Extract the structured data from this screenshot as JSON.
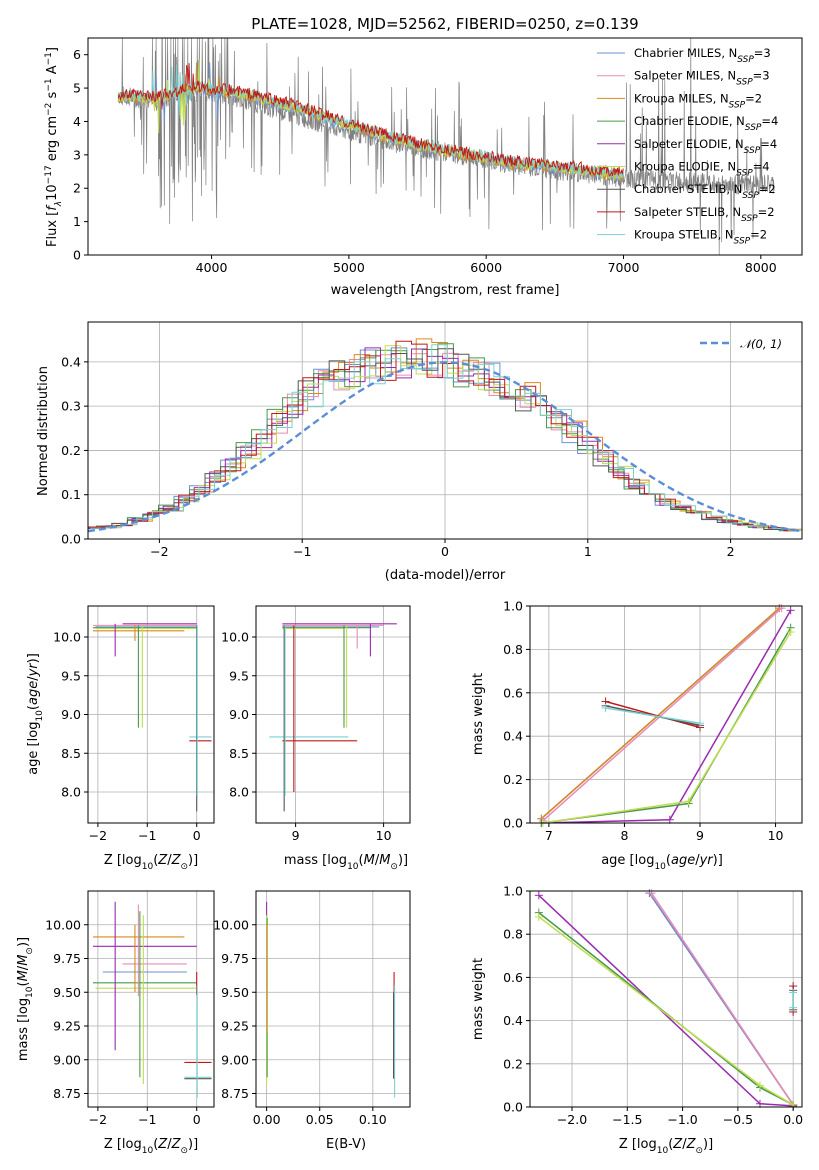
{
  "title": "PLATE=1028, MJD=52562, FIBERID=0250, z=0.139",
  "colors": {
    "Chabrier MILES": "#6d8fd6",
    "Salpeter MILES": "#e88ab8",
    "Kroupa MILES": "#d98a1e",
    "Chabrier ELODIE": "#4a9a4a",
    "Salpeter ELODIE": "#9a2ab0",
    "Kroupa ELODIE": "#c0dc50",
    "Chabrier STELIB": "#555555",
    "Salpeter STELIB": "#c01818",
    "Kroupa STELIB": "#7cd0d0",
    "data": "#808080",
    "normal": "#5b8ed6"
  },
  "chart_data": [
    {
      "type": "line",
      "title": "PLATE=1028, MJD=52562, FIBERID=0250, z=0.139",
      "xlabel": "wavelength [Angstrom, rest frame]",
      "ylabel": "Flux [f_λ 10^-17 erg cm^-2 s^-1 A^-1]",
      "xlim": [
        3100,
        8300
      ],
      "ylim": [
        0,
        6.5
      ],
      "xticks": [
        "4000",
        "5000",
        "6000",
        "7000",
        "8000"
      ],
      "yticks": [
        "0",
        "1",
        "2",
        "3",
        "4",
        "5",
        "6"
      ],
      "legend": [
        {
          "base": "Chabrier MILES",
          "suffix": "=3"
        },
        {
          "base": "Salpeter MILES",
          "suffix": "=3"
        },
        {
          "base": "Kroupa MILES",
          "suffix": "=2"
        },
        {
          "base": "Chabrier ELODIE",
          "suffix": "=4"
        },
        {
          "base": "Salpeter ELODIE",
          "suffix": "=4"
        },
        {
          "base": "Kroupa ELODIE",
          "suffix": "=4"
        },
        {
          "base": "Chabrier STELIB",
          "suffix": "=2"
        },
        {
          "base": "Salpeter STELIB",
          "suffix": "=2"
        },
        {
          "base": "Kroupa STELIB",
          "suffix": "=2"
        }
      ],
      "legend_placement": "top-right",
      "grid": false,
      "data_trend": {
        "x": [
          3320,
          3600,
          3900,
          4200,
          4600,
          5000,
          5400,
          5800,
          6200,
          6600,
          7000,
          7400,
          7800,
          8100
        ],
        "y": [
          4.8,
          4.6,
          4.9,
          4.7,
          4.2,
          3.7,
          3.3,
          3.0,
          2.7,
          2.5,
          2.3,
          2.2,
          2.1,
          2.1
        ]
      },
      "model_trend": {
        "x": [
          3320,
          3600,
          3900,
          4200,
          4600,
          5000,
          5400,
          5800,
          6200,
          6600,
          7000
        ],
        "y": [
          4.75,
          4.7,
          5.0,
          4.85,
          4.45,
          3.9,
          3.4,
          3.05,
          2.75,
          2.6,
          2.4
        ]
      }
    },
    {
      "type": "line",
      "xlabel": "(data-model)/error",
      "ylabel": "Normed distribution",
      "xlim": [
        -2.5,
        2.5
      ],
      "ylim": [
        0,
        0.49
      ],
      "xticks": [
        "−2",
        "−1",
        "0",
        "1",
        "2"
      ],
      "yticks": [
        "0.0",
        "0.1",
        "0.2",
        "0.3",
        "0.4"
      ],
      "grid": true,
      "normal_label": "𝒩(0, 1)",
      "hist_profile": [
        0.025,
        0.028,
        0.032,
        0.045,
        0.058,
        0.07,
        0.09,
        0.11,
        0.14,
        0.17,
        0.2,
        0.23,
        0.265,
        0.3,
        0.33,
        0.355,
        0.37,
        0.38,
        0.39,
        0.4,
        0.405,
        0.41,
        0.405,
        0.4,
        0.385,
        0.375,
        0.36,
        0.345,
        0.325,
        0.3,
        0.27,
        0.24,
        0.21,
        0.18,
        0.15,
        0.125,
        0.1,
        0.085,
        0.07,
        0.058,
        0.048,
        0.04,
        0.034,
        0.028,
        0.024,
        0.02
      ]
    },
    {
      "type": "scatter",
      "xlabel": "Z [log10(Z/Z⊙)]",
      "ylabel": "age  [log10(age/yr)]",
      "xlim": [
        -2.2,
        0.35
      ],
      "ylim": [
        7.6,
        10.4
      ],
      "xticks": [
        "−2",
        "−1",
        "0"
      ],
      "yticks": [
        "8.0",
        "8.5",
        "9.0",
        "9.5",
        "10.0"
      ],
      "grid": true,
      "hlines": [
        {
          "m": "Salpeter ELODIE",
          "x1": -1.5,
          "x2": 0.0,
          "y": 10.17
        },
        {
          "m": "Salpeter MILES",
          "x1": -2.1,
          "x2": 0.0,
          "y": 10.15
        },
        {
          "m": "Chabrier MILES",
          "x1": -2.05,
          "x2": 0.0,
          "y": 10.13
        },
        {
          "m": "Chabrier ELODIE",
          "x1": -2.1,
          "x2": 0.0,
          "y": 10.12
        },
        {
          "m": "Kroupa ELODIE",
          "x1": -2.05,
          "x2": 0.0,
          "y": 10.11
        },
        {
          "m": "Kroupa MILES",
          "x1": -2.1,
          "x2": -0.25,
          "y": 10.08
        },
        {
          "m": "Kroupa STELIB",
          "x1": -0.15,
          "x2": 0.3,
          "y": 8.71
        },
        {
          "m": "Salpeter STELIB",
          "x1": -0.15,
          "x2": 0.3,
          "y": 8.66
        }
      ],
      "vlines": [
        {
          "m": "Salpeter ELODIE",
          "x": -1.65,
          "y1": 9.75,
          "y2": 10.17
        },
        {
          "m": "Kroupa MILES",
          "x": -1.25,
          "y1": 9.95,
          "y2": 10.15
        },
        {
          "m": "Chabrier ELODIE",
          "x": -1.18,
          "y1": 8.83,
          "y2": 10.15
        },
        {
          "m": "Kroupa ELODIE",
          "x": -1.1,
          "y1": 8.83,
          "y2": 10.15
        },
        {
          "m": "Chabrier STELIB",
          "x": 0.0,
          "y1": 7.75,
          "y2": 10.15
        },
        {
          "m": "Kroupa STELIB",
          "x": 0.01,
          "y1": 7.95,
          "y2": 10.15
        }
      ]
    },
    {
      "type": "scatter",
      "xlabel": "mass [log10(M/M⊙)]",
      "xlim": [
        8.55,
        10.3
      ],
      "ylim": [
        7.6,
        10.4
      ],
      "xticks": [
        "9",
        "10"
      ],
      "yticks": [
        "8.0",
        "8.5",
        "9.0",
        "9.5",
        "10.0"
      ],
      "grid": true,
      "hlines": [
        {
          "m": "Salpeter ELODIE",
          "x1": 8.85,
          "x2": 10.15,
          "y": 10.17
        },
        {
          "m": "Salpeter MILES",
          "x1": 8.85,
          "x2": 10.0,
          "y": 10.15
        },
        {
          "m": "Chabrier MILES",
          "x1": 8.85,
          "x2": 9.95,
          "y": 10.13
        },
        {
          "m": "Chabrier ELODIE",
          "x1": 8.85,
          "x2": 9.85,
          "y": 10.12
        },
        {
          "m": "Kroupa ELODIE",
          "x1": 8.85,
          "x2": 9.55,
          "y": 10.11
        },
        {
          "m": "Kroupa STELIB",
          "x1": 8.7,
          "x2": 9.6,
          "y": 8.71
        },
        {
          "m": "Salpeter STELIB",
          "x1": 8.85,
          "x2": 9.7,
          "y": 8.66
        }
      ],
      "vlines": [
        {
          "m": "Chabrier STELIB",
          "x": 8.87,
          "y1": 7.75,
          "y2": 10.15
        },
        {
          "m": "Kroupa STELIB",
          "x": 8.88,
          "y1": 7.95,
          "y2": 10.15
        },
        {
          "m": "Salpeter STELIB",
          "x": 8.98,
          "y1": 8.0,
          "y2": 10.15
        },
        {
          "m": "Chabrier ELODIE",
          "x": 9.55,
          "y1": 8.83,
          "y2": 10.15
        },
        {
          "m": "Kroupa ELODIE",
          "x": 9.58,
          "y1": 8.83,
          "y2": 10.15
        },
        {
          "m": "Salpeter MILES",
          "x": 9.7,
          "y1": 9.85,
          "y2": 10.15
        },
        {
          "m": "Salpeter ELODIE",
          "x": 9.85,
          "y1": 9.75,
          "y2": 10.17
        }
      ]
    },
    {
      "type": "line",
      "xlabel": "age  [log10(age/yr)]",
      "ylabel": "mass weight",
      "xlim": [
        6.75,
        10.35
      ],
      "ylim": [
        0,
        1.0
      ],
      "xticks": [
        "7",
        "8",
        "9",
        "10"
      ],
      "yticks": [
        "0.0",
        "0.2",
        "0.4",
        "0.6",
        "0.8",
        "1.0"
      ],
      "grid": true,
      "series": [
        {
          "m": "Chabrier MILES",
          "x": [
            6.9,
            10.05
          ],
          "y": [
            0.02,
            0.99
          ]
        },
        {
          "m": "Kroupa MILES",
          "x": [
            6.9,
            10.05
          ],
          "y": [
            0.02,
            0.99
          ]
        },
        {
          "m": "Salpeter MILES",
          "x": [
            6.92,
            10.08
          ],
          "y": [
            0.01,
            0.99
          ]
        },
        {
          "m": "Salpeter ELODIE",
          "x": [
            6.9,
            8.6,
            10.2
          ],
          "y": [
            0.0,
            0.015,
            0.98
          ]
        },
        {
          "m": "Chabrier ELODIE",
          "x": [
            6.9,
            8.85,
            10.2
          ],
          "y": [
            0.0,
            0.09,
            0.9
          ]
        },
        {
          "m": "Kroupa ELODIE",
          "x": [
            6.92,
            8.85,
            10.2
          ],
          "y": [
            0.0,
            0.1,
            0.88
          ]
        },
        {
          "m": "Salpeter STELIB",
          "x": [
            7.75,
            9.0
          ],
          "y": [
            0.56,
            0.44
          ]
        },
        {
          "m": "Chabrier STELIB",
          "x": [
            7.75,
            9.0
          ],
          "y": [
            0.54,
            0.45
          ]
        },
        {
          "m": "Kroupa STELIB",
          "x": [
            7.75,
            9.0
          ],
          "y": [
            0.53,
            0.46
          ]
        }
      ]
    },
    {
      "type": "scatter",
      "xlabel": "Z [log10(Z/Z⊙)]",
      "ylabel": "mass [log10(M/M⊙)]",
      "xlim": [
        -2.2,
        0.35
      ],
      "ylim": [
        8.65,
        10.25
      ],
      "xticks": [
        "−2",
        "−1",
        "0"
      ],
      "yticks": [
        "8.75",
        "9.00",
        "9.25",
        "9.50",
        "9.75",
        "10.00"
      ],
      "grid": true,
      "hlines": [
        {
          "m": "Kroupa MILES",
          "x1": -2.1,
          "x2": -0.25,
          "y": 9.91
        },
        {
          "m": "Salpeter ELODIE",
          "x1": -2.1,
          "x2": 0.0,
          "y": 9.84
        },
        {
          "m": "Salpeter MILES",
          "x1": -1.5,
          "x2": -0.2,
          "y": 9.71
        },
        {
          "m": "Chabrier MILES",
          "x1": -1.9,
          "x2": -0.2,
          "y": 9.65
        },
        {
          "m": "Chabrier ELODIE",
          "x1": -2.1,
          "x2": 0.0,
          "y": 9.57
        },
        {
          "m": "Kroupa ELODIE",
          "x1": -2.05,
          "x2": 0.0,
          "y": 9.53
        },
        {
          "m": "Salpeter STELIB",
          "x1": -0.25,
          "x2": 0.3,
          "y": 8.98
        },
        {
          "m": "Kroupa STELIB",
          "x1": -0.25,
          "x2": 0.3,
          "y": 8.87
        },
        {
          "m": "Chabrier STELIB",
          "x1": -0.25,
          "x2": 0.3,
          "y": 8.86
        }
      ],
      "vlines": [
        {
          "m": "Salpeter ELODIE",
          "x": -1.65,
          "y1": 9.07,
          "y2": 10.17
        },
        {
          "m": "Kroupa MILES",
          "x": -1.25,
          "y1": 9.5,
          "y2": 10.0
        },
        {
          "m": "Salpeter MILES",
          "x": -1.18,
          "y1": 9.47,
          "y2": 10.15
        },
        {
          "m": "Chabrier ELODIE",
          "x": -1.15,
          "y1": 8.87,
          "y2": 10.1
        },
        {
          "m": "Kroupa ELODIE",
          "x": -1.08,
          "y1": 8.82,
          "y2": 10.07
        },
        {
          "m": "Salpeter STELIB",
          "x": 0.0,
          "y1": 9.48,
          "y2": 9.65
        },
        {
          "m": "Kroupa STELIB",
          "x": 0.01,
          "y1": 8.72,
          "y2": 9.55
        }
      ]
    },
    {
      "type": "scatter",
      "xlabel": "E(B-V)",
      "xlim": [
        -0.01,
        0.135
      ],
      "ylim": [
        8.65,
        10.25
      ],
      "xticks": [
        "0.00",
        "0.05",
        "0.10"
      ],
      "yticks": [
        "8.75",
        "9.00",
        "9.25",
        "9.50",
        "9.75",
        "10.00"
      ],
      "grid": true,
      "vlines": [
        {
          "m": "Salpeter ELODIE",
          "x": 0.0,
          "y1": 10.05,
          "y2": 10.17
        },
        {
          "m": "Kroupa ELODIE",
          "x": 0.0,
          "y1": 8.82,
          "y2": 10.07
        },
        {
          "m": "Chabrier ELODIE",
          "x": 0.0005,
          "y1": 8.87,
          "y2": 10.05
        },
        {
          "m": "Kroupa MILES",
          "x": 0.0003,
          "y1": 9.2,
          "y2": 10.0
        },
        {
          "m": "Salpeter STELIB",
          "x": 0.12,
          "y1": 9.5,
          "y2": 9.65
        },
        {
          "m": "Kroupa STELIB",
          "x": 0.1205,
          "y1": 8.72,
          "y2": 9.55
        },
        {
          "m": "Chabrier STELIB",
          "x": 0.1195,
          "y1": 8.86,
          "y2": 9.5
        }
      ]
    },
    {
      "type": "line",
      "xlabel": "Z [log10(Z/Z⊙)]",
      "ylabel": "mass weight",
      "xlim": [
        -2.38,
        0.08
      ],
      "ylim": [
        0,
        1.0
      ],
      "xticks": [
        "−2.0",
        "−1.5",
        "−1.0",
        "−0.5",
        "0.0"
      ],
      "yticks": [
        "0.0",
        "0.2",
        "0.4",
        "0.6",
        "0.8",
        "1.0"
      ],
      "grid": true,
      "series": [
        {
          "m": "Kroupa MILES",
          "x": [
            -1.3,
            0.0
          ],
          "y": [
            0.99,
            0.01
          ]
        },
        {
          "m": "Chabrier MILES",
          "x": [
            -1.3,
            0.0
          ],
          "y": [
            0.99,
            0.01
          ]
        },
        {
          "m": "Salpeter MILES",
          "x": [
            -1.28,
            0.0
          ],
          "y": [
            0.99,
            0.01
          ]
        },
        {
          "m": "Salpeter ELODIE",
          "x": [
            -2.3,
            -0.3,
            0.0
          ],
          "y": [
            0.98,
            0.015,
            0.005
          ]
        },
        {
          "m": "Chabrier ELODIE",
          "x": [
            -2.3,
            -0.3,
            0.0
          ],
          "y": [
            0.9,
            0.09,
            0.01
          ]
        },
        {
          "m": "Kroupa ELODIE",
          "x": [
            -2.3,
            -0.3,
            0.0
          ],
          "y": [
            0.88,
            0.1,
            0.01
          ]
        },
        {
          "m": "Salpeter STELIB",
          "x": [
            0.0,
            0.0
          ],
          "y": [
            0.56,
            0.44
          ]
        },
        {
          "m": "Chabrier STELIB",
          "x": [
            0.0,
            0.0
          ],
          "y": [
            0.54,
            0.45
          ]
        },
        {
          "m": "Kroupa STELIB",
          "x": [
            0.0,
            0.0
          ],
          "y": [
            0.53,
            0.46
          ]
        }
      ]
    }
  ]
}
